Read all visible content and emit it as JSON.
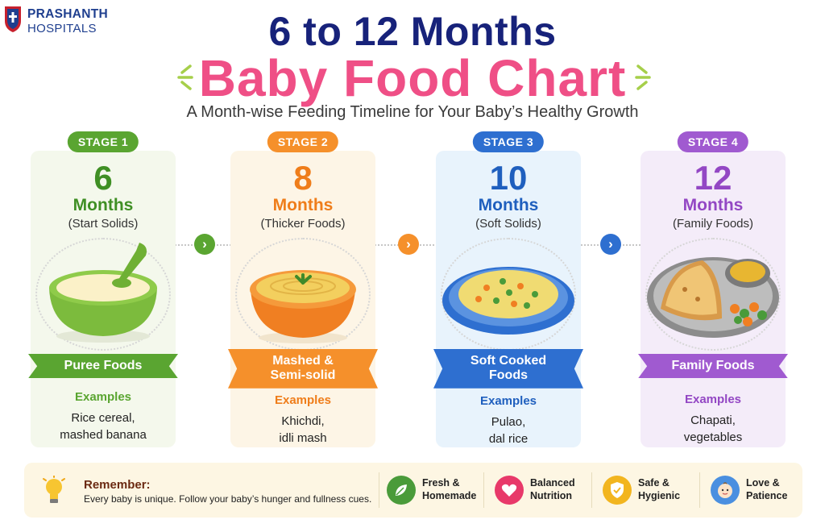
{
  "logo": {
    "name": "PRASHANTH",
    "sub": "HOSPITALS"
  },
  "title": {
    "line1": "6 to 12 Months",
    "line2": "Baby Food Chart",
    "subtitle": "A Month-wise Feeding Timeline for Your Baby’s Healthy Growth"
  },
  "colors": {
    "green": "#5aa531",
    "orange": "#f5902b",
    "blue": "#2e6fd0",
    "purple": "#a05ad0",
    "title_navy": "#17227a",
    "title_pink": "#ef4f86"
  },
  "stages": [
    {
      "badge": "STAGE 1",
      "number": "6",
      "months": "Months",
      "note": "(Start Solids)",
      "food_type": "Puree Foods",
      "examples_title": "Examples",
      "examples_line1": "Rice cereal,",
      "examples_line2": "mashed banana",
      "icon": "puree-bowl-icon"
    },
    {
      "badge": "STAGE 2",
      "number": "8",
      "months": "Months",
      "note": "(Thicker Foods)",
      "food_type_line1": "Mashed &",
      "food_type_line2": "Semi-solid",
      "examples_title": "Examples",
      "examples_line1": "Khichdi,",
      "examples_line2": "idli mash",
      "icon": "khichdi-bowl-icon"
    },
    {
      "badge": "STAGE 3",
      "number": "10",
      "months": "Months",
      "note": "(Soft Solids)",
      "food_type_line1": "Soft Cooked",
      "food_type_line2": "Foods",
      "examples_title": "Examples",
      "examples_line1": "Pulao,",
      "examples_line2": "dal rice",
      "icon": "pulao-plate-icon"
    },
    {
      "badge": "STAGE 4",
      "number": "12",
      "months": "Months",
      "note": "(Family Foods)",
      "food_type": "Family Foods",
      "examples_title": "Examples",
      "examples_line1": "Chapati,",
      "examples_line2": "vegetables",
      "icon": "thali-plate-icon"
    }
  ],
  "timeline_arrows": [
    "chevron-right-icon",
    "chevron-right-icon",
    "chevron-right-icon"
  ],
  "remember": {
    "title": "Remember:",
    "text": "Every baby is unique. Follow your baby’s hunger and fullness cues.",
    "icon": "lightbulb-icon"
  },
  "features": [
    {
      "line1": "Fresh &",
      "line2": "Homemade",
      "icon": "leaf-icon",
      "color": "#4a9b3a"
    },
    {
      "line1": "Balanced",
      "line2": "Nutrition",
      "icon": "heart-icon",
      "color": "#e8396a"
    },
    {
      "line1": "Safe &",
      "line2": "Hygienic",
      "icon": "shield-check-icon",
      "color": "#f2b51f"
    },
    {
      "line1": "Love &",
      "line2": "Patience",
      "icon": "baby-face-icon",
      "color": "#4a8fe0"
    }
  ]
}
